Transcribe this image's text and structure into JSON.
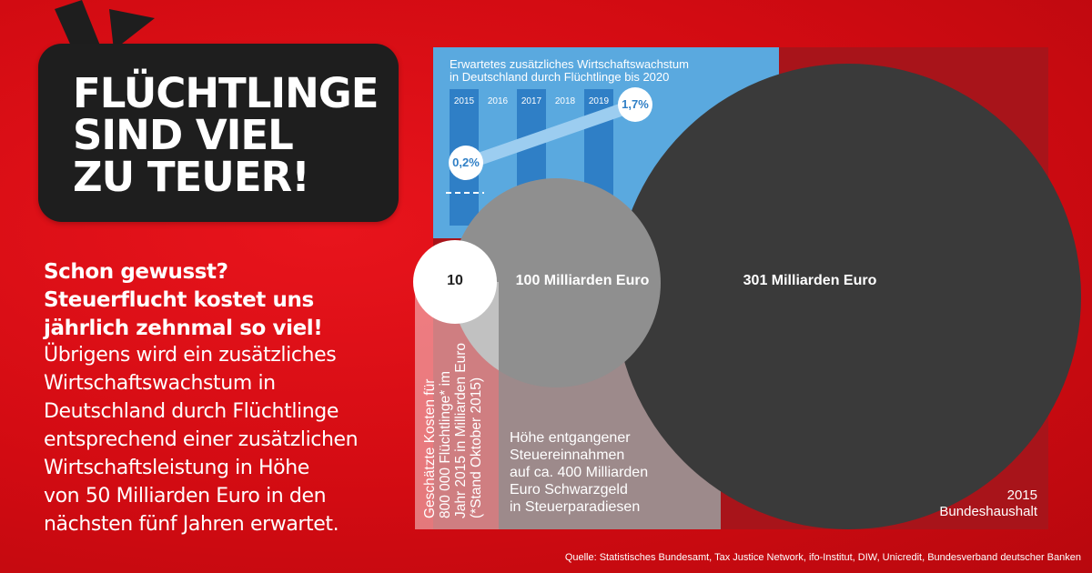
{
  "headline": [
    "FLÜCHTLINGE",
    "SIND VIEL",
    "ZU TEUER!"
  ],
  "lead": [
    "Schon gewusst?",
    "Steuerflucht kostet uns",
    "jährlich zehnmal so viel!"
  ],
  "body": [
    "Übrigens wird ein zusätzliches",
    "Wirtschaftswachstum in",
    "Deutschland durch Flüchtlinge",
    "entsprechend einer zusätzlichen",
    "Wirtschaftsleistung in Höhe",
    "von 50 Milliarden Euro in den",
    "nächsten fünf Jahren erwartet."
  ],
  "growth": {
    "title": [
      "Erwartetes zusätzliches Wirtschaftswachstum",
      "in Deutschland durch Flüchtlinge bis 2020"
    ],
    "years": [
      "2015",
      "2016",
      "2017",
      "2018",
      "2019"
    ],
    "start_value": "0,2%",
    "end_value": "1,7%"
  },
  "circles": {
    "small_value": "10",
    "mid_value": "100 Milliarden Euro",
    "big_value": "301 Milliarden Euro"
  },
  "labels": {
    "refugee_costs": [
      "Geschätzte Kosten für",
      "800 000 Flüchtlinge* im",
      "Jahr 2015 in Milliarden Euro",
      "(*Stand Oktober 2015)"
    ],
    "tax_loss": [
      "Höhe entgangener",
      "Steuereinnahmen",
      "auf ca. 400 Milliarden",
      "Euro Schwarzgeld",
      "in Steuerparadiesen"
    ],
    "budget": [
      "2015",
      "Bundeshaushalt"
    ]
  },
  "source": "Quelle: Statistisches Bundesamt, Tax Justice Network, ifo-Institut, DIW, Unicredit, Bundesverband deutscher Banken",
  "colors": {
    "background": "#d20b12",
    "bubble": "#1e1e1e",
    "growth_panel": "#5aa9df",
    "growth_dark": "#2f7fc6",
    "big_circle": "#3a3a3a",
    "mid_circle": "#8f8f8f",
    "small_circle": "#ffffff"
  }
}
